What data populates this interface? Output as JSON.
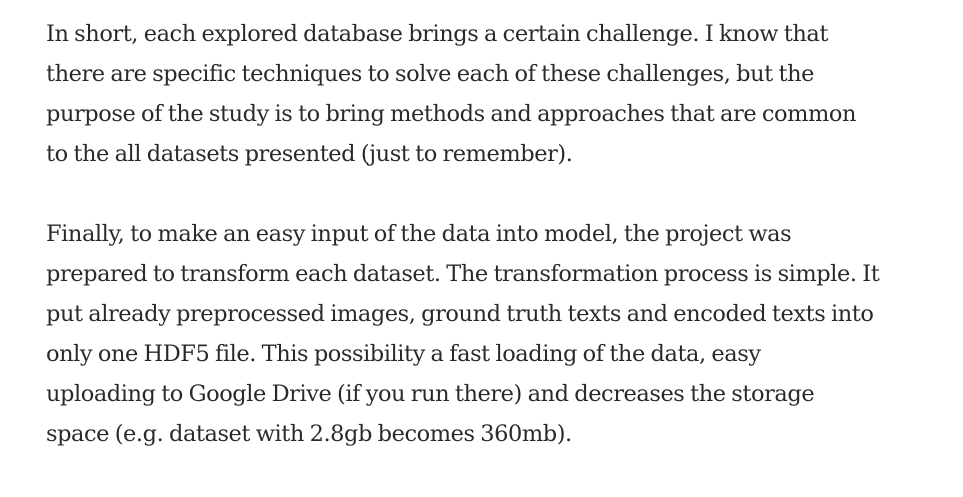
{
  "article": {
    "paragraphs": [
      {
        "lines": [
          "In short, each explored database brings a certain challenge. I know that",
          "there are specific techniques to solve each of these challenges, but the",
          "purpose of the study is to bring methods and approaches that are common",
          "to the all datasets presented (just to remember)."
        ]
      },
      {
        "lines": [
          "Finally, to make an easy input of the data into model, the project was",
          "prepared to transform each dataset. The transformation process is simple. It",
          "put already preprocessed images, ground truth texts and encoded texts into",
          "only one HDF5 file. This possibility a fast loading of the data, easy",
          "uploading to Google Drive (if you run there) and decreases the storage",
          "space (e.g. dataset with 2.8gb becomes 360mb)."
        ]
      }
    ]
  }
}
